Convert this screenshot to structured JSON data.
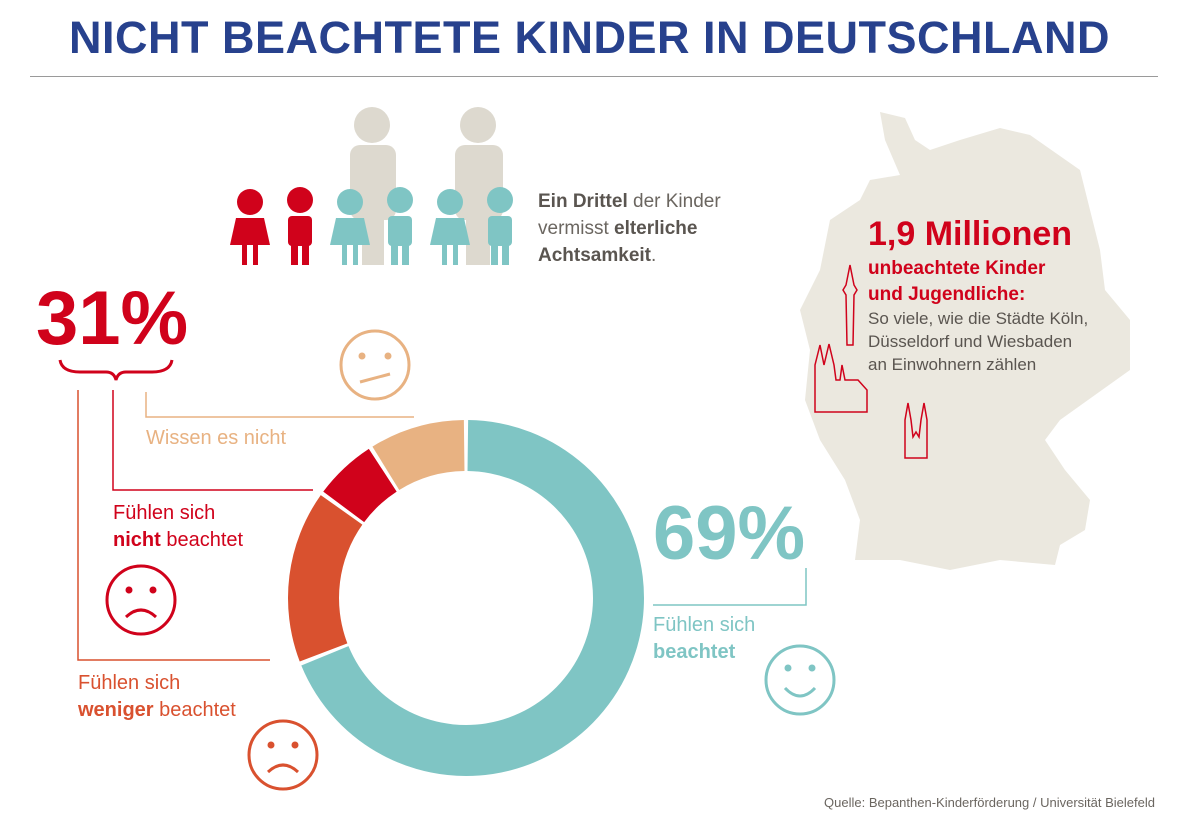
{
  "title": "NICHT BEACHTETE KINDER IN DEUTSCHLAND",
  "family": {
    "text_bold1": "Ein Drittel",
    "text1": " der Kinder",
    "text2": "vermisst ",
    "text_bold2": "elterliche",
    "text_bold3": "Achtsamkeit",
    "text3": "."
  },
  "colors": {
    "teal": "#7fc5c4",
    "red": "#d0021b",
    "orange_red": "#d9512f",
    "peach": "#e8b282",
    "map": "#ebe8df",
    "title": "#27418d"
  },
  "map": {
    "headline": "1,9 Millionen",
    "sub1": "unbeachtete Kinder",
    "sub2": "und Jugendliche:",
    "body1": "So viele, wie die Städte Köln,",
    "body2": "Düsseldorf und Wiesbaden",
    "body3": "an Einwohnern zählen"
  },
  "labels": {
    "pct31": "31%",
    "pct69": "69%",
    "wissen": "Wissen es nicht",
    "nicht_a": "Fühlen sich",
    "nicht_b": "nicht",
    "nicht_c": " beachtet",
    "weniger_a": "Fühlen sich",
    "weniger_b": "weniger",
    "weniger_c": " beachtet",
    "beachtet_a": "Fühlen sich",
    "beachtet_b": "beachtet"
  },
  "source": "Quelle: Bepanthen-Kinderförderung / Universität Bielefeld",
  "chart_data": {
    "type": "pie",
    "donut": true,
    "start": "top, clockwise",
    "categories": [
      "Fühlen sich beachtet",
      "Fühlen sich weniger beachtet",
      "Fühlen sich nicht beachtet",
      "Wissen es nicht"
    ],
    "values": [
      69,
      16,
      6,
      9
    ],
    "colors": [
      "#7fc5c4",
      "#d9512f",
      "#d0021b",
      "#e8b282"
    ]
  }
}
